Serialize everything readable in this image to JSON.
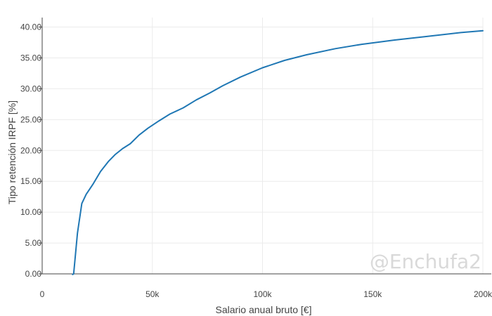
{
  "chart_data": {
    "type": "line",
    "xlabel": "Salario anual bruto [€]",
    "ylabel": "Tipo retención IRPF [%]",
    "xlim": [
      0,
      200000
    ],
    "ylim": [
      0,
      40
    ],
    "grid": true,
    "x_ticks": [
      {
        "value": 0,
        "label": "0"
      },
      {
        "value": 50000,
        "label": "50k"
      },
      {
        "value": 100000,
        "label": "100k"
      },
      {
        "value": 150000,
        "label": "150k"
      },
      {
        "value": 200000,
        "label": "200k"
      }
    ],
    "y_ticks": [
      {
        "value": 0,
        "label": "0.00"
      },
      {
        "value": 5,
        "label": "5.00"
      },
      {
        "value": 10,
        "label": "10.00"
      },
      {
        "value": 15,
        "label": "15.00"
      },
      {
        "value": 20,
        "label": "20.00"
      },
      {
        "value": 25,
        "label": "25.00"
      },
      {
        "value": 30,
        "label": "30.00"
      },
      {
        "value": 35,
        "label": "35.00"
      },
      {
        "value": 40,
        "label": "40.00"
      }
    ],
    "series": [
      {
        "color": "#1f77b4",
        "x": [
          13800,
          14300,
          16000,
          18000,
          20000,
          23000,
          26500,
          30000,
          33000,
          36500,
          40000,
          44000,
          48000,
          53000,
          58000,
          64000,
          70000,
          76000,
          82000,
          90000,
          100000,
          110000,
          120000,
          133000,
          145000,
          160000,
          175000,
          190000,
          200000
        ],
        "y": [
          -0.1,
          0.0,
          6.6,
          11.4,
          12.9,
          14.5,
          16.6,
          18.2,
          19.3,
          20.3,
          21.1,
          22.5,
          23.6,
          24.8,
          25.9,
          26.9,
          28.2,
          29.3,
          30.5,
          31.9,
          33.4,
          34.6,
          35.5,
          36.5,
          37.2,
          37.9,
          38.5,
          39.1,
          39.4
        ]
      }
    ],
    "watermark": "@Enchufa2"
  },
  "colors": {
    "line": "#1f77b4",
    "grid": "#ebebeb",
    "axis": "#444444",
    "watermark": "#d9d9d9"
  }
}
